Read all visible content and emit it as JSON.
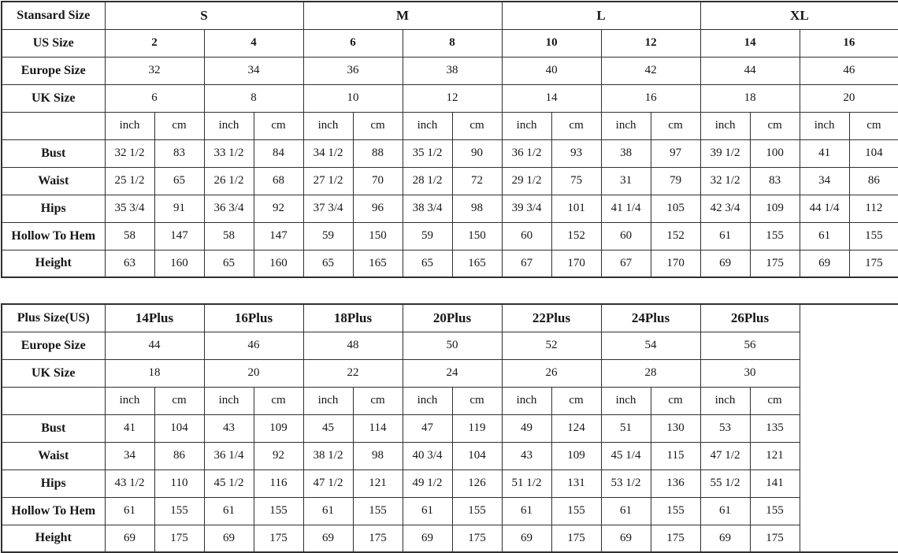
{
  "page": {
    "background": "#ffffff",
    "border_color": "#2f2f2f",
    "text_color": "#161616"
  },
  "units": {
    "inch": "inch",
    "cm": "cm"
  },
  "standard": {
    "corner_label": "Stansard Size",
    "size_groups": [
      "S",
      "M",
      "L",
      "XL"
    ],
    "size_rows": [
      {
        "label": "US Size",
        "bold": true,
        "values": [
          "2",
          "4",
          "6",
          "8",
          "10",
          "12",
          "14",
          "16"
        ]
      },
      {
        "label": "Europe Size",
        "bold": false,
        "values": [
          "32",
          "34",
          "36",
          "38",
          "40",
          "42",
          "44",
          "46"
        ]
      },
      {
        "label": "UK Size",
        "bold": false,
        "values": [
          "6",
          "8",
          "10",
          "12",
          "14",
          "16",
          "18",
          "20"
        ]
      }
    ],
    "unit_pairs": 8,
    "has_trailing_empty_column": false,
    "measurements": [
      {
        "label": "Bust",
        "values": [
          "32 1/2",
          "83",
          "33 1/2",
          "84",
          "34 1/2",
          "88",
          "35 1/2",
          "90",
          "36 1/2",
          "93",
          "38",
          "97",
          "39 1/2",
          "100",
          "41",
          "104"
        ]
      },
      {
        "label": "Waist",
        "values": [
          "25 1/2",
          "65",
          "26 1/2",
          "68",
          "27 1/2",
          "70",
          "28 1/2",
          "72",
          "29 1/2",
          "75",
          "31",
          "79",
          "32 1/2",
          "83",
          "34",
          "86"
        ]
      },
      {
        "label": "Hips",
        "values": [
          "35 3/4",
          "91",
          "36 3/4",
          "92",
          "37 3/4",
          "96",
          "38 3/4",
          "98",
          "39 3/4",
          "101",
          "41 1/4",
          "105",
          "42 3/4",
          "109",
          "44 1/4",
          "112"
        ]
      },
      {
        "label": "Hollow To Hem",
        "values": [
          "58",
          "147",
          "58",
          "147",
          "59",
          "150",
          "59",
          "150",
          "60",
          "152",
          "60",
          "152",
          "61",
          "155",
          "61",
          "155"
        ]
      },
      {
        "label": "Height",
        "values": [
          "63",
          "160",
          "65",
          "160",
          "65",
          "165",
          "65",
          "165",
          "67",
          "170",
          "67",
          "170",
          "69",
          "175",
          "69",
          "175"
        ]
      }
    ]
  },
  "plus": {
    "corner_label": "Plus Size(US)",
    "size_groups": [
      "14Plus",
      "16Plus",
      "18Plus",
      "20Plus",
      "22Plus",
      "24Plus",
      "26Plus"
    ],
    "size_rows": [
      {
        "label": "Europe Size",
        "bold": false,
        "values": [
          "44",
          "46",
          "48",
          "50",
          "52",
          "54",
          "56"
        ]
      },
      {
        "label": "UK Size",
        "bold": false,
        "values": [
          "18",
          "20",
          "22",
          "24",
          "26",
          "28",
          "30"
        ]
      }
    ],
    "unit_pairs": 7,
    "has_trailing_empty_column": true,
    "measurements": [
      {
        "label": "Bust",
        "values": [
          "41",
          "104",
          "43",
          "109",
          "45",
          "114",
          "47",
          "119",
          "49",
          "124",
          "51",
          "130",
          "53",
          "135"
        ]
      },
      {
        "label": "Waist",
        "values": [
          "34",
          "86",
          "36 1/4",
          "92",
          "38 1/2",
          "98",
          "40 3/4",
          "104",
          "43",
          "109",
          "45 1/4",
          "115",
          "47 1/2",
          "121"
        ]
      },
      {
        "label": "Hips",
        "values": [
          "43 1/2",
          "110",
          "45 1/2",
          "116",
          "47 1/2",
          "121",
          "49 1/2",
          "126",
          "51 1/2",
          "131",
          "53 1/2",
          "136",
          "55 1/2",
          "141"
        ]
      },
      {
        "label": "Hollow To Hem",
        "values": [
          "61",
          "155",
          "61",
          "155",
          "61",
          "155",
          "61",
          "155",
          "61",
          "155",
          "61",
          "155",
          "61",
          "155"
        ]
      },
      {
        "label": "Height",
        "values": [
          "69",
          "175",
          "69",
          "175",
          "69",
          "175",
          "69",
          "175",
          "69",
          "175",
          "69",
          "175",
          "69",
          "175"
        ]
      }
    ]
  }
}
